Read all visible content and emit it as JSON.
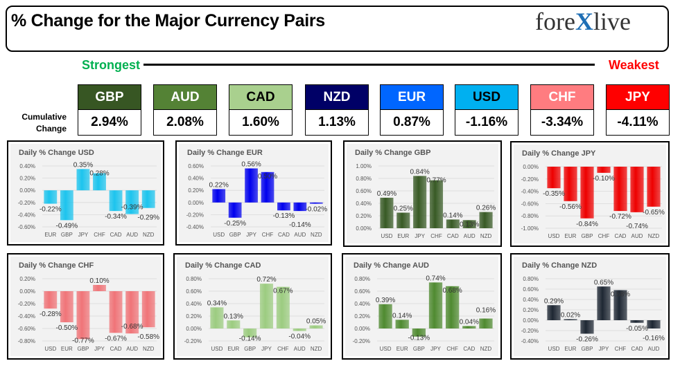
{
  "header": {
    "title": "% Change for the Major Currency Pairs",
    "logo": "forexlive"
  },
  "scale": {
    "strongest": "Strongest",
    "weakest": "Weakest"
  },
  "cumulative_label": "Cumulative Change",
  "currencies": [
    {
      "code": "GBP",
      "value": "2.94%",
      "color": "#375623",
      "text": "#ffffff"
    },
    {
      "code": "AUD",
      "value": "2.08%",
      "color": "#548235",
      "text": "#ffffff"
    },
    {
      "code": "CAD",
      "value": "1.60%",
      "color": "#a9d08e",
      "text": "#000000"
    },
    {
      "code": "NZD",
      "value": "1.13%",
      "color": "#000066",
      "text": "#ffffff"
    },
    {
      "code": "EUR",
      "value": "0.87%",
      "color": "#0066ff",
      "text": "#ffffff"
    },
    {
      "code": "USD",
      "value": "-1.16%",
      "color": "#00b0f0",
      "text": "#000000"
    },
    {
      "code": "CHF",
      "value": "-3.34%",
      "color": "#ff7c80",
      "text": "#ffffff"
    },
    {
      "code": "JPY",
      "value": "-4.11%",
      "color": "#ff0000",
      "text": "#ffffff"
    }
  ],
  "chart_data": [
    {
      "type": "bar",
      "title": "Daily % Change USD",
      "color": "#1cc4ee",
      "categories": [
        "EUR",
        "GBP",
        "JPY",
        "CHF",
        "CAD",
        "AUD",
        "NZD"
      ],
      "values": [
        -0.22,
        -0.49,
        0.35,
        0.28,
        -0.34,
        -0.39,
        -0.29
      ],
      "ylim": [
        -0.6,
        0.4
      ],
      "grid": true
    },
    {
      "type": "bar",
      "title": "Daily % Change EUR",
      "color": "#0000ee",
      "categories": [
        "USD",
        "GBP",
        "JPY",
        "CHF",
        "CAD",
        "AUD",
        "NZD"
      ],
      "values": [
        0.22,
        -0.25,
        0.56,
        0.5,
        -0.13,
        -0.14,
        -0.02
      ],
      "ylim": [
        -0.4,
        0.6
      ],
      "grid": true
    },
    {
      "type": "bar",
      "title": "Daily % Change GBP",
      "color": "#385a25",
      "categories": [
        "USD",
        "EUR",
        "JPY",
        "CHF",
        "CAD",
        "AUD",
        "NZD"
      ],
      "values": [
        0.49,
        0.25,
        0.84,
        0.77,
        0.14,
        0.13,
        0.26
      ],
      "ylim": [
        0,
        1.0
      ],
      "grid": true
    },
    {
      "type": "bar",
      "title": "Daily % Change JPY",
      "color": "#ee0000",
      "categories": [
        "USD",
        "EUR",
        "GBP",
        "CHF",
        "CAD",
        "AUD",
        "NZD"
      ],
      "values": [
        -0.35,
        -0.56,
        -0.84,
        -0.1,
        -0.72,
        -0.74,
        -0.65
      ],
      "ylim": [
        -1.0,
        0
      ],
      "grid": true
    },
    {
      "type": "bar",
      "title": "Daily % Change CHF",
      "color": "#f07478",
      "categories": [
        "USD",
        "EUR",
        "GBP",
        "JPY",
        "CAD",
        "AUD",
        "NZD"
      ],
      "values": [
        -0.28,
        -0.5,
        -0.77,
        0.1,
        -0.67,
        -0.68,
        -0.58
      ],
      "ylim": [
        -0.8,
        0.2
      ],
      "grid": true
    },
    {
      "type": "bar",
      "title": "Daily % Change CAD",
      "color": "#9ccc80",
      "categories": [
        "USD",
        "EUR",
        "GBP",
        "JPY",
        "CHF",
        "AUD",
        "NZD"
      ],
      "values": [
        0.34,
        0.13,
        -0.14,
        0.72,
        0.67,
        -0.04,
        0.05
      ],
      "ylim": [
        -0.2,
        0.8
      ],
      "grid": true
    },
    {
      "type": "bar",
      "title": "Daily % Change AUD",
      "color": "#4f8a30",
      "categories": [
        "USD",
        "EUR",
        "GBP",
        "JPY",
        "CHF",
        "CAD",
        "NZD"
      ],
      "values": [
        0.39,
        0.14,
        -0.13,
        0.74,
        0.68,
        0.04,
        0.16
      ],
      "ylim": [
        -0.2,
        0.8
      ],
      "grid": true
    },
    {
      "type": "bar",
      "title": "Daily % Change NZD",
      "color": "#1e2733",
      "categories": [
        "USD",
        "EUR",
        "GBP",
        "JPY",
        "CHF",
        "CAD",
        "AUD"
      ],
      "values": [
        0.29,
        0.02,
        -0.26,
        0.65,
        0.58,
        -0.05,
        -0.16
      ],
      "ylim": [
        -0.4,
        0.8
      ],
      "grid": true
    }
  ]
}
